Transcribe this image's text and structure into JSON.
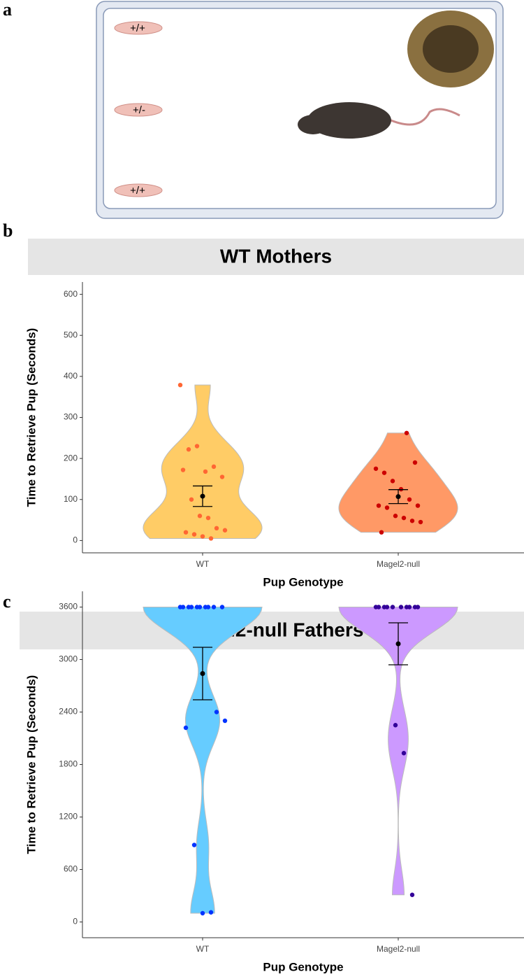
{
  "panel_labels": [
    "a",
    "b",
    "c"
  ],
  "cage": {
    "pup_labels": [
      "+/+",
      "+/-",
      "+/+"
    ]
  },
  "chart_data": [
    {
      "type": "violin",
      "title": "WT Mothers",
      "x_label": "Pup Genotype",
      "y_label": "Time to Retrieve Pup (Seconds)",
      "categories": [
        "WT",
        "Magel2-null"
      ],
      "values": [
        [
          379,
          222,
          230,
          168,
          180,
          155,
          172,
          100,
          60,
          55,
          30,
          25,
          20,
          15,
          10,
          5
        ],
        [
          262,
          190,
          175,
          165,
          145,
          125,
          100,
          85,
          85,
          80,
          60,
          55,
          48,
          45,
          20
        ]
      ],
      "means": [
        108,
        107
      ],
      "errors": [
        25,
        17
      ],
      "colors": [
        "#ffcc66",
        "#ff9966"
      ],
      "point_colors": [
        "#ff6633",
        "#cc0000"
      ],
      "ylim": [
        -30,
        630
      ],
      "yticks": [
        0,
        100,
        200,
        300,
        400,
        500,
        600
      ]
    },
    {
      "type": "violin",
      "title": "Magel2-null Fathers",
      "x_label": "Pup Genotype",
      "y_label": "Time to Retrieve Pup (Seconds)",
      "categories": [
        "WT",
        "Magel2-null"
      ],
      "values": [
        [
          3600,
          3600,
          3600,
          3600,
          3600,
          3600,
          3600,
          3600,
          3600,
          3600,
          2400,
          2300,
          2220,
          880,
          100,
          110
        ],
        [
          3600,
          3600,
          3600,
          3600,
          3600,
          3600,
          3600,
          3600,
          3600,
          3600,
          2250,
          1930,
          310
        ]
      ],
      "means": [
        2840,
        3180
      ],
      "errors": [
        300,
        240
      ],
      "colors": [
        "#66ccff",
        "#cc99ff"
      ],
      "point_colors": [
        "#0033ff",
        "#330099"
      ],
      "ylim": [
        -180,
        3780
      ],
      "yticks": [
        0,
        600,
        1200,
        1800,
        2400,
        3000,
        3600
      ]
    }
  ]
}
